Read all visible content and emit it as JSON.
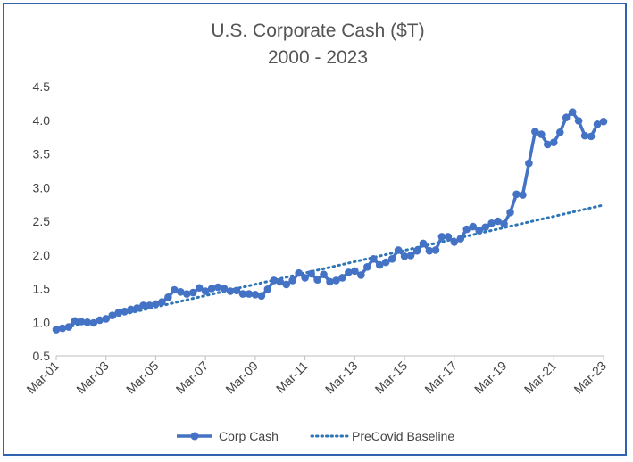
{
  "chart_data": {
    "type": "line",
    "title": "U.S. Corporate Cash ($T)",
    "subtitle": "2000 - 2023",
    "xlabel": "",
    "ylabel": "",
    "ylim": [
      0.5,
      4.5
    ],
    "yticks": [
      "0.5",
      "1.0",
      "1.5",
      "2.0",
      "2.5",
      "3.0",
      "3.5",
      "4.0",
      "4.5"
    ],
    "xticks": [
      "Mar-01",
      "Mar-03",
      "Mar-05",
      "Mar-07",
      "Mar-09",
      "Mar-11",
      "Mar-13",
      "Mar-15",
      "Mar-17",
      "Mar-19",
      "Mar-21",
      "Mar-23"
    ],
    "grid": false,
    "legend": "bottom",
    "series": [
      {
        "name": "Corp Cash",
        "style": "solid-with-markers",
        "color": "#4472c4",
        "x": [
          "Mar-01",
          "Jun-01",
          "Sep-01",
          "Dec-01",
          "Mar-02",
          "Jun-02",
          "Sep-02",
          "Dec-02",
          "Mar-03",
          "Jun-03",
          "Sep-03",
          "Dec-03",
          "Mar-04",
          "Jun-04",
          "Sep-04",
          "Dec-04",
          "Mar-05",
          "Jun-05",
          "Sep-05",
          "Dec-05",
          "Mar-06",
          "Jun-06",
          "Sep-06",
          "Dec-06",
          "Mar-07",
          "Jun-07",
          "Sep-07",
          "Dec-07",
          "Mar-08",
          "Jun-08",
          "Sep-08",
          "Dec-08",
          "Mar-09",
          "Jun-09",
          "Sep-09",
          "Dec-09",
          "Mar-10",
          "Jun-10",
          "Sep-10",
          "Dec-10",
          "Mar-11",
          "Jun-11",
          "Sep-11",
          "Dec-11",
          "Mar-12",
          "Jun-12",
          "Sep-12",
          "Dec-12",
          "Mar-13",
          "Jun-13",
          "Sep-13",
          "Dec-13",
          "Mar-14",
          "Jun-14",
          "Sep-14",
          "Dec-14",
          "Mar-15",
          "Jun-15",
          "Sep-15",
          "Dec-15",
          "Mar-16",
          "Jun-16",
          "Sep-16",
          "Dec-16",
          "Mar-17",
          "Jun-17",
          "Sep-17",
          "Dec-17",
          "Mar-18",
          "Jun-18",
          "Sep-18",
          "Dec-18",
          "Mar-19",
          "Jun-19",
          "Sep-19",
          "Dec-19",
          "Mar-20",
          "Jun-20",
          "Sep-20",
          "Dec-20",
          "Mar-21",
          "Jun-21",
          "Sep-21",
          "Dec-21",
          "Mar-22",
          "Jun-22",
          "Sep-22",
          "Dec-22",
          "Mar-23"
        ],
        "values": [
          0.89,
          0.91,
          0.93,
          1.02,
          1.01,
          1.0,
          0.99,
          1.03,
          1.05,
          1.1,
          1.14,
          1.16,
          1.19,
          1.21,
          1.25,
          1.25,
          1.27,
          1.3,
          1.37,
          1.48,
          1.45,
          1.42,
          1.44,
          1.51,
          1.46,
          1.5,
          1.52,
          1.5,
          1.46,
          1.47,
          1.42,
          1.42,
          1.41,
          1.39,
          1.49,
          1.62,
          1.6,
          1.56,
          1.62,
          1.73,
          1.66,
          1.72,
          1.63,
          1.71,
          1.6,
          1.62,
          1.66,
          1.74,
          1.76,
          1.7,
          1.82,
          1.94,
          1.85,
          1.89,
          1.94,
          2.07,
          1.98,
          1.99,
          2.06,
          2.17,
          2.06,
          2.07,
          2.27,
          2.27,
          2.19,
          2.24,
          2.38,
          2.42,
          2.36,
          2.41,
          2.47,
          2.5,
          2.46,
          2.63,
          2.9,
          2.89,
          3.36,
          3.83,
          3.79,
          3.64,
          3.67,
          3.82,
          4.04,
          4.12,
          3.99,
          3.77,
          3.76,
          3.94,
          3.98
        ]
      },
      {
        "name": "PreCovid Baseline",
        "style": "dotted",
        "color": "#2e75b6",
        "x": [
          "Mar-01",
          "Mar-23"
        ],
        "values": [
          0.89,
          2.74
        ]
      }
    ]
  }
}
